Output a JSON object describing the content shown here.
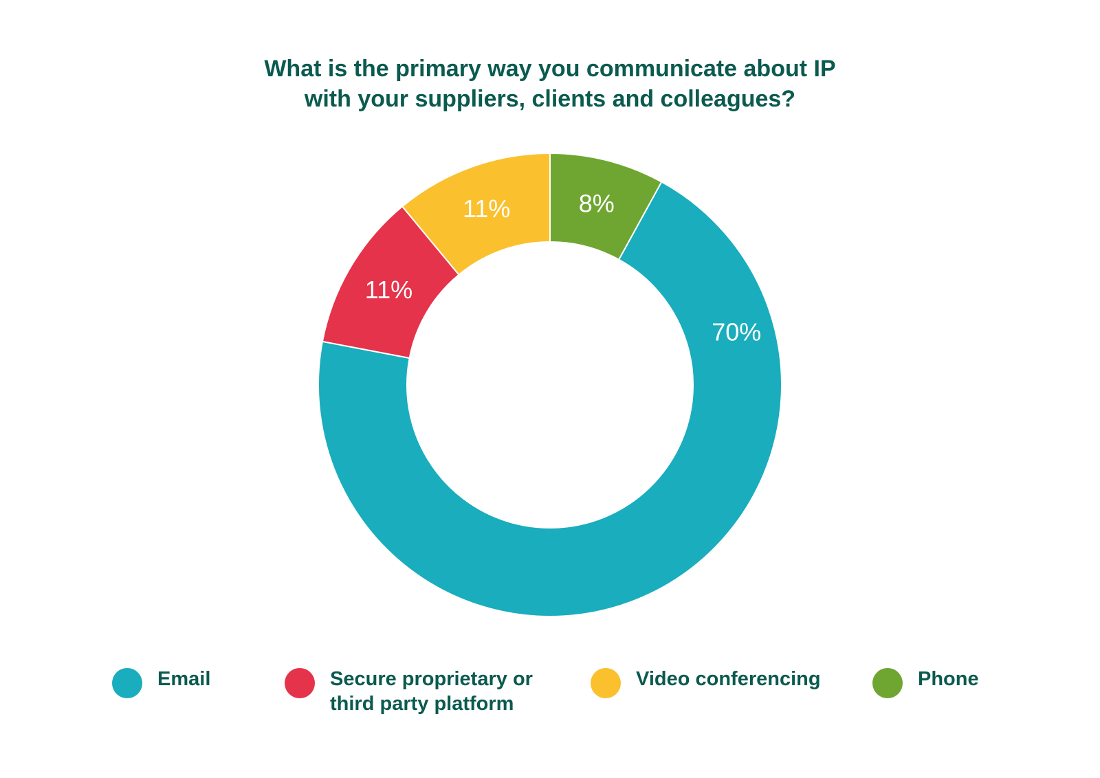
{
  "chart_data": {
    "type": "pie",
    "donut": true,
    "title_lines": [
      "What is the primary way you communicate about IP",
      "with your suppliers, clients and colleagues?"
    ],
    "categories": [
      "Email",
      "Secure proprietary or third party platform",
      "Video conferencing",
      "Phone"
    ],
    "values": [
      70,
      11,
      11,
      8
    ],
    "value_labels": [
      "70%",
      "11%",
      "11%",
      "8%"
    ],
    "colors": [
      "#19adbd",
      "#e5334b",
      "#fbc02d",
      "#6fa631"
    ],
    "legend_placement": "bottom",
    "legend": [
      {
        "lines": [
          "Email"
        ],
        "color": "#19adbd"
      },
      {
        "lines": [
          "Secure proprietary or",
          "third party platform"
        ],
        "color": "#e5334b"
      },
      {
        "lines": [
          "Video conferencing"
        ],
        "color": "#fbc02d"
      },
      {
        "lines": [
          "Phone"
        ],
        "color": "#6fa631"
      }
    ]
  }
}
